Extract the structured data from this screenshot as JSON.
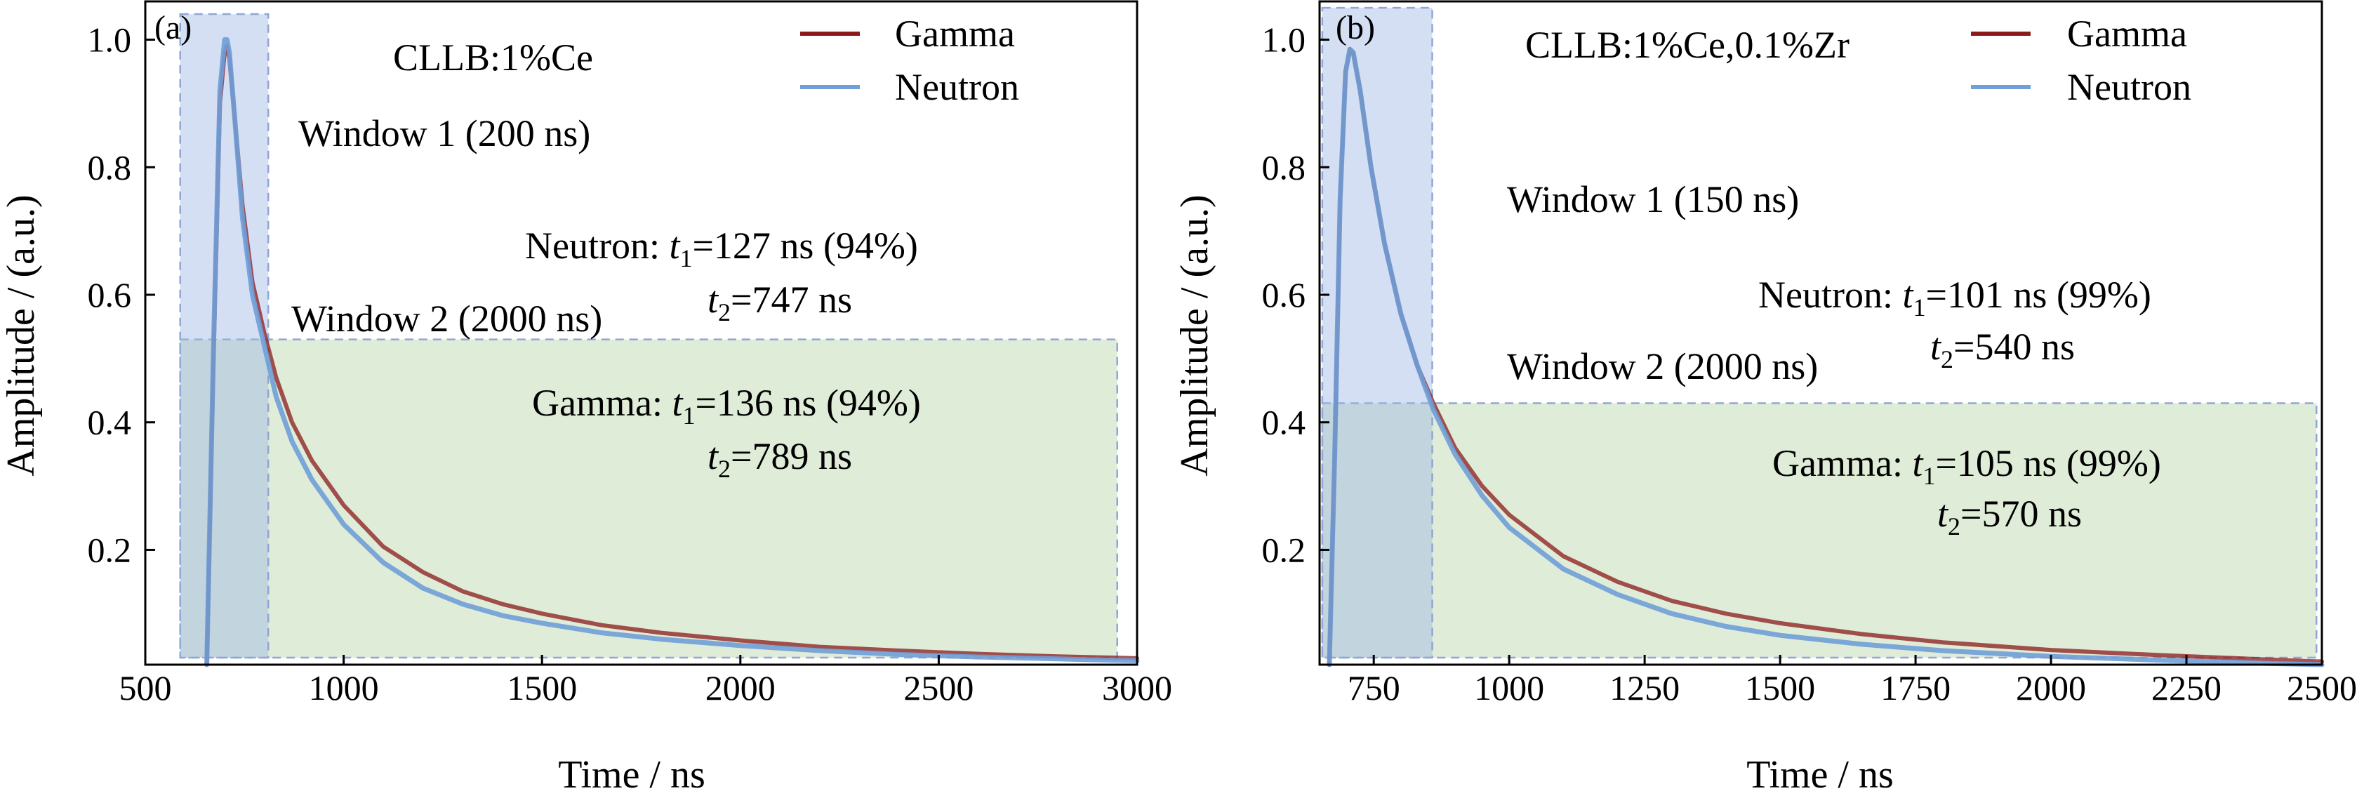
{
  "chart_data": [
    {
      "panel_label": "(a)",
      "type": "line",
      "title": "CLLB:1%Ce",
      "xlabel": "Time / ns",
      "ylabel": "Amplitude / (a.u.)",
      "xlim": [
        500,
        3000
      ],
      "ylim": [
        0.02,
        1.06
      ],
      "xticks": [
        500,
        1000,
        1500,
        2000,
        2500,
        3000
      ],
      "xtick_labels": [
        "500",
        "1000",
        "1500",
        "2000",
        "2500",
        "3000"
      ],
      "yticks": [
        0.2,
        0.4,
        0.6,
        0.8,
        1.0
      ],
      "ytick_labels": [
        "0.2",
        "0.4",
        "0.6",
        "0.8",
        "1.0"
      ],
      "grid": false,
      "legend_position": "top-right",
      "series": [
        {
          "name": "Gamma",
          "color": "#8B1A1A",
          "x": [
            655,
            672,
            688,
            700,
            706,
            712,
            725,
            745,
            770,
            800,
            830,
            870,
            920,
            1000,
            1100,
            1200,
            1300,
            1400,
            1500,
            1650,
            1800,
            2000,
            2200,
            2400,
            2600,
            2800,
            3000
          ],
          "y": [
            0.02,
            0.5,
            0.9,
            0.98,
            0.99,
            0.97,
            0.88,
            0.74,
            0.62,
            0.54,
            0.47,
            0.4,
            0.34,
            0.27,
            0.205,
            0.165,
            0.135,
            0.115,
            0.1,
            0.082,
            0.07,
            0.058,
            0.048,
            0.042,
            0.037,
            0.033,
            0.03
          ]
        },
        {
          "name": "Neutron",
          "color": "#6F9FD8",
          "x": [
            655,
            672,
            688,
            700,
            706,
            712,
            725,
            745,
            770,
            800,
            830,
            870,
            920,
            1000,
            1100,
            1200,
            1300,
            1400,
            1500,
            1650,
            1800,
            2000,
            2200,
            2400,
            2600,
            2800,
            3000
          ],
          "y": [
            0.02,
            0.52,
            0.92,
            1.0,
            1.0,
            0.98,
            0.88,
            0.72,
            0.6,
            0.52,
            0.44,
            0.37,
            0.31,
            0.24,
            0.18,
            0.14,
            0.115,
            0.097,
            0.085,
            0.07,
            0.06,
            0.05,
            0.042,
            0.036,
            0.032,
            0.029,
            0.026
          ]
        }
      ],
      "windows": [
        {
          "name": "Window 1",
          "label": "Window 1 (200 ns)",
          "x_range": [
            588,
            810
          ],
          "y_top": 1.04,
          "color": "#9FB7E6"
        },
        {
          "name": "Window 2",
          "label": "Window 2 (2000 ns)",
          "x_range": [
            588,
            2950
          ],
          "y_top": 0.53,
          "color": "#B9D4A8"
        }
      ],
      "annotations": {
        "neutron_prefix": "Neutron:",
        "neutron_t1": "=127 ns (94%)",
        "neutron_t2": "=747 ns",
        "gamma_prefix": "Gamma:",
        "gamma_t1": "=136 ns (94%)",
        "gamma_t2": "=789 ns"
      }
    },
    {
      "panel_label": "(b)",
      "type": "line",
      "title": "CLLB:1%Ce,0.1%Zr",
      "xlabel": "Time / ns",
      "ylabel": "Amplitude / (a.u.)",
      "xlim": [
        650,
        2500
      ],
      "ylim": [
        0.02,
        1.06
      ],
      "xticks": [
        750,
        1000,
        1250,
        1500,
        1750,
        2000,
        2250,
        2500
      ],
      "xtick_labels": [
        "750",
        "1000",
        "1250",
        "1500",
        "1750",
        "2000",
        "2250",
        "2500"
      ],
      "yticks": [
        0.2,
        0.4,
        0.6,
        0.8,
        1.0
      ],
      "ytick_labels": [
        "0.2",
        "0.4",
        "0.6",
        "0.8",
        "1.0"
      ],
      "grid": false,
      "legend_position": "top-right",
      "series": [
        {
          "name": "Gamma",
          "color": "#8B1A1A",
          "x": [
            668,
            678,
            688,
            698,
            706,
            712,
            725,
            745,
            770,
            800,
            830,
            860,
            900,
            950,
            1000,
            1100,
            1200,
            1300,
            1400,
            1500,
            1650,
            1800,
            2000,
            2200,
            2400,
            2500
          ],
          "y": [
            0.02,
            0.35,
            0.75,
            0.95,
            0.985,
            0.98,
            0.92,
            0.8,
            0.68,
            0.57,
            0.49,
            0.43,
            0.36,
            0.3,
            0.255,
            0.19,
            0.15,
            0.12,
            0.1,
            0.085,
            0.068,
            0.055,
            0.043,
            0.035,
            0.028,
            0.025
          ]
        },
        {
          "name": "Neutron",
          "color": "#6F9FD8",
          "x": [
            668,
            678,
            688,
            698,
            706,
            712,
            725,
            745,
            770,
            800,
            830,
            860,
            900,
            950,
            1000,
            1100,
            1200,
            1300,
            1400,
            1500,
            1650,
            1800,
            2000,
            2200,
            2400,
            2500
          ],
          "y": [
            0.02,
            0.35,
            0.75,
            0.95,
            0.985,
            0.98,
            0.92,
            0.8,
            0.68,
            0.57,
            0.49,
            0.42,
            0.35,
            0.285,
            0.235,
            0.17,
            0.13,
            0.1,
            0.08,
            0.066,
            0.052,
            0.042,
            0.033,
            0.027,
            0.022,
            0.02
          ]
        }
      ],
      "windows": [
        {
          "name": "Window 1",
          "label": "Window 1 (150 ns)",
          "x_range": [
            655,
            858
          ],
          "y_top": 1.05,
          "color": "#9FB7E6"
        },
        {
          "name": "Window 2",
          "label": "Window  2 (2000 ns)",
          "x_range": [
            655,
            2490
          ],
          "y_top": 0.43,
          "color": "#B9D4A8"
        }
      ],
      "annotations": {
        "neutron_prefix": "Neutron:",
        "neutron_t1": "=101 ns (99%)",
        "neutron_t2": "=540 ns",
        "gamma_prefix": "Gamma:",
        "gamma_t1": "=105 ns (99%)",
        "gamma_t2": "=570 ns"
      }
    }
  ]
}
